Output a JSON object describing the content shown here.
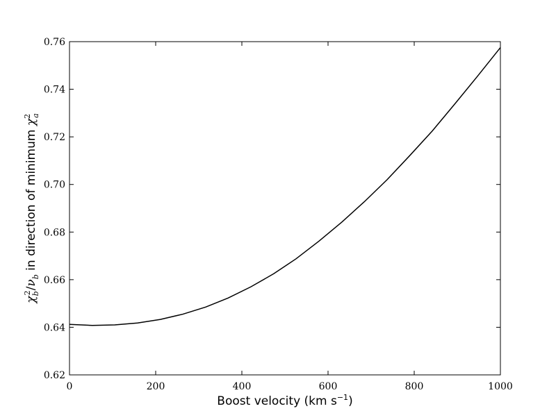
{
  "chart_data": {
    "type": "line",
    "title": "",
    "xlabel_text": "Boost velocity (km s",
    "xlabel_exp": "−1",
    "xlabel_close": ")",
    "ylabel_chi": "χ",
    "ylabel_b1": "b",
    "ylabel_sq1": "2",
    "ylabel_slash": "/",
    "ylabel_nu": "ν",
    "ylabel_b2": "b",
    "ylabel_mid": " in direction of minimum ",
    "ylabel_chi2": "χ",
    "ylabel_sq2": "2",
    "ylabel_a": "a",
    "xlim": [
      0,
      1000
    ],
    "ylim": [
      0.62,
      0.76
    ],
    "xticks": [
      0,
      200,
      400,
      600,
      800,
      1000
    ],
    "xtick_labels": [
      "0",
      "200",
      "400",
      "600",
      "800",
      "1000"
    ],
    "yticks": [
      0.62,
      0.64,
      0.66,
      0.68,
      0.7,
      0.72,
      0.74,
      0.76
    ],
    "ytick_labels": [
      "0.62",
      "0.64",
      "0.66",
      "0.68",
      "0.70",
      "0.72",
      "0.74",
      "0.76"
    ],
    "grid": false,
    "series": [
      {
        "x": [
          0,
          53,
          105,
          158,
          211,
          263,
          316,
          368,
          421,
          474,
          526,
          579,
          632,
          684,
          737,
          789,
          842,
          895,
          947,
          1000
        ],
        "y": [
          0.6412,
          0.6408,
          0.641,
          0.6418,
          0.6433,
          0.6455,
          0.6485,
          0.6523,
          0.657,
          0.6625,
          0.6688,
          0.6762,
          0.6842,
          0.6927,
          0.702,
          0.712,
          0.7225,
          0.734,
          0.7455,
          0.7575
        ]
      }
    ]
  }
}
